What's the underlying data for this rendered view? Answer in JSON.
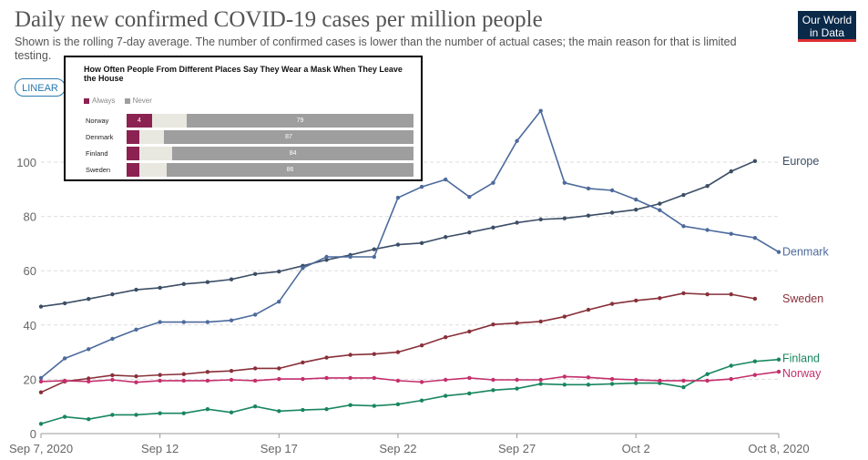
{
  "header": {
    "title": "Daily new confirmed COVID-19 cases per million people",
    "subtitle": "Shown is the rolling 7-day average. The number of confirmed cases is lower than the number of actual cases; the main reason for that is limited testing.",
    "logo_line1": "Our World",
    "logo_line2": "in Data",
    "scale_button": "LINEAR"
  },
  "colors": {
    "europe": "#3c4e66",
    "denmark": "#4c6a9c",
    "sweden": "#883039",
    "finland": "#18865e",
    "norway": "#c42f6c",
    "grid": "#dddddd",
    "axis": "#666666"
  },
  "chart_data": {
    "type": "line",
    "title": "Daily new confirmed COVID-19 cases per million people",
    "xlabel": "",
    "ylabel": "",
    "ylim": [
      0,
      120
    ],
    "yticks": [
      0,
      20,
      40,
      60,
      80,
      100
    ],
    "x_range_days": [
      0,
      31
    ],
    "xticks": [
      {
        "day": 0,
        "label": "Sep 7, 2020"
      },
      {
        "day": 5,
        "label": "Sep 12"
      },
      {
        "day": 10,
        "label": "Sep 17"
      },
      {
        "day": 15,
        "label": "Sep 22"
      },
      {
        "day": 20,
        "label": "Sep 27"
      },
      {
        "day": 25,
        "label": "Oct 2"
      },
      {
        "day": 31,
        "label": "Oct 8, 2020"
      }
    ],
    "series": [
      {
        "name": "Europe",
        "color_key": "europe",
        "start_day": 0,
        "values": [
          46.8,
          48.0,
          49.6,
          51.3,
          53.0,
          53.7,
          55.1,
          55.8,
          56.8,
          58.8,
          59.7,
          61.8,
          64.0,
          65.8,
          67.9,
          69.6,
          70.2,
          72.4,
          74.1,
          75.9,
          77.7,
          78.9,
          79.3,
          80.3,
          81.4,
          82.5,
          84.7,
          87.9,
          91.2,
          96.6,
          100.4
        ]
      },
      {
        "name": "Denmark",
        "color_key": "denmark",
        "start_day": 0,
        "values": [
          20.5,
          27.7,
          31.1,
          34.9,
          38.3,
          41.1,
          41.1,
          41.1,
          41.7,
          43.8,
          48.6,
          61.0,
          65.1,
          65.1,
          65.1,
          86.9,
          90.9,
          93.6,
          87.2,
          92.4,
          107.8,
          118.9,
          92.4,
          90.3,
          89.6,
          86.2,
          82.3,
          76.4,
          75.0,
          73.6,
          72.1,
          66.9
        ]
      },
      {
        "name": "Sweden",
        "color_key": "sweden",
        "start_day": 0,
        "values": [
          15.2,
          19.2,
          20.3,
          21.5,
          21.1,
          21.6,
          21.9,
          22.7,
          23.1,
          24.0,
          24.0,
          26.2,
          28.0,
          29.0,
          29.3,
          30.0,
          32.5,
          35.5,
          37.6,
          40.2,
          40.7,
          41.3,
          43.1,
          45.6,
          47.8,
          49.0,
          49.9,
          51.7,
          51.3,
          51.3,
          49.7
        ]
      },
      {
        "name": "Finland",
        "color_key": "finland",
        "start_day": 0,
        "values": [
          3.6,
          6.2,
          5.3,
          6.9,
          6.9,
          7.5,
          7.5,
          9.0,
          7.8,
          10.0,
          8.3,
          8.7,
          9.0,
          10.5,
          10.2,
          10.8,
          12.2,
          13.9,
          14.8,
          16.0,
          16.6,
          18.3,
          18.0,
          18.0,
          18.3,
          18.6,
          18.6,
          17.1,
          21.9,
          25.0,
          26.6,
          27.3
        ]
      },
      {
        "name": "Norway",
        "color_key": "norway",
        "start_day": 0,
        "values": [
          19.2,
          19.5,
          19.2,
          19.8,
          18.9,
          19.5,
          19.5,
          19.5,
          19.8,
          19.5,
          20.1,
          20.1,
          20.5,
          20.5,
          20.5,
          19.5,
          19.0,
          19.8,
          20.5,
          19.8,
          19.8,
          19.8,
          21.0,
          20.7,
          20.1,
          19.8,
          19.5,
          19.5,
          19.5,
          20.1,
          21.6,
          22.8
        ]
      }
    ]
  },
  "mask_inset": {
    "title": "How Often People From Different Places Say They Wear a Mask When They Leave the House",
    "legend_always": "Always",
    "legend_never": "Never",
    "rows": [
      {
        "country": "Norway",
        "always": 4,
        "always_label": "4",
        "never": 79,
        "never_label": "79"
      },
      {
        "country": "Denmark",
        "always": 2,
        "always_label": "",
        "never": 87,
        "never_label": "87"
      },
      {
        "country": "Finland",
        "always": 2,
        "always_label": "",
        "never": 84,
        "never_label": "84"
      },
      {
        "country": "Sweden",
        "always": 2,
        "always_label": "",
        "never": 86,
        "never_label": "86"
      }
    ]
  }
}
